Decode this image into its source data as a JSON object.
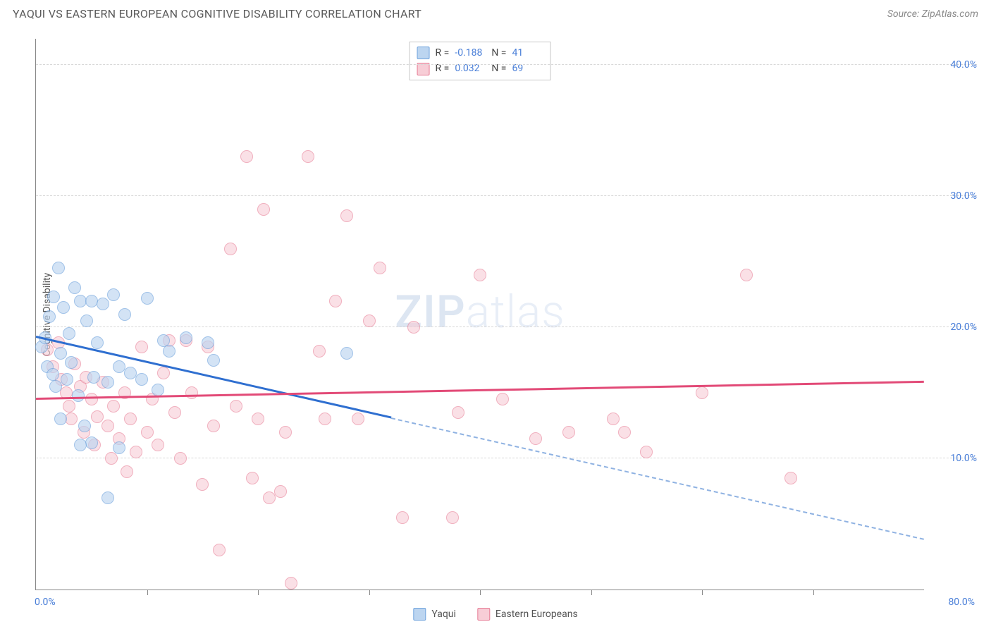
{
  "title": "YAQUI VS EASTERN EUROPEAN COGNITIVE DISABILITY CORRELATION CHART",
  "source": "Source: ZipAtlas.com",
  "ylabel": "Cognitive Disability",
  "watermark_bold": "ZIP",
  "watermark_light": "atlas",
  "chart": {
    "type": "scatter",
    "xlim": [
      0,
      80
    ],
    "ylim": [
      0,
      42
    ],
    "background_color": "#ffffff",
    "grid_color": "#d8d8d8",
    "marker_radius": 9,
    "marker_stroke_width": 1.2,
    "x_ticks": [
      10,
      20,
      30,
      40,
      50,
      60,
      70
    ],
    "y_gridlines": [
      10,
      20,
      30,
      40
    ],
    "y_tick_labels": [
      "10.0%",
      "20.0%",
      "30.0%",
      "40.0%"
    ],
    "x_min_label": "0.0%",
    "x_max_label": "80.0%",
    "tick_label_color": "#4a7fd8",
    "tick_label_fontsize": 14
  },
  "series": [
    {
      "name": "Yaqui",
      "fill": "#bcd5f0",
      "stroke": "#6fa3dd",
      "fill_opacity": 0.65,
      "trend": {
        "y_at_x0": 19.2,
        "y_at_x80": 3.8,
        "solid_until_x": 32,
        "color": "#2f6fd0",
        "width": 2.5,
        "dash_color": "#8fb2e2"
      },
      "R_label": "R = ",
      "R": "-0.188",
      "N_label": "N = ",
      "N": "41",
      "points": [
        [
          0.5,
          18.5
        ],
        [
          0.8,
          19.2
        ],
        [
          1.0,
          17.0
        ],
        [
          1.2,
          20.8
        ],
        [
          1.5,
          16.4
        ],
        [
          1.6,
          22.3
        ],
        [
          1.8,
          15.5
        ],
        [
          2.0,
          24.5
        ],
        [
          2.2,
          18.0
        ],
        [
          2.5,
          21.5
        ],
        [
          2.8,
          16.0
        ],
        [
          3.0,
          19.5
        ],
        [
          3.2,
          17.3
        ],
        [
          3.5,
          23.0
        ],
        [
          3.8,
          14.8
        ],
        [
          4.0,
          22.0
        ],
        [
          4.4,
          12.5
        ],
        [
          4.6,
          20.5
        ],
        [
          5.0,
          22.0
        ],
        [
          5.2,
          16.2
        ],
        [
          5.5,
          18.8
        ],
        [
          6.0,
          21.8
        ],
        [
          6.5,
          15.8
        ],
        [
          2.2,
          13.0
        ],
        [
          7.0,
          22.5
        ],
        [
          7.5,
          17.0
        ],
        [
          8.0,
          21.0
        ],
        [
          8.5,
          16.5
        ],
        [
          9.5,
          16.0
        ],
        [
          10.0,
          22.2
        ],
        [
          11.0,
          15.2
        ],
        [
          11.5,
          19.0
        ],
        [
          12.0,
          18.2
        ],
        [
          13.5,
          19.2
        ],
        [
          15.5,
          18.8
        ],
        [
          16.0,
          17.5
        ],
        [
          5.0,
          11.2
        ],
        [
          6.5,
          7.0
        ],
        [
          4.0,
          11.0
        ],
        [
          7.5,
          10.8
        ],
        [
          28.0,
          18.0
        ]
      ]
    },
    {
      "name": "Eastern Europeans",
      "fill": "#f7cdd6",
      "stroke": "#e77b94",
      "fill_opacity": 0.6,
      "trend": {
        "y_at_x0": 14.5,
        "y_at_x80": 15.8,
        "solid_until_x": 80,
        "color": "#e24a77",
        "width": 2.5
      },
      "R_label": "R = ",
      "R": "0.032",
      "N_label": "N = ",
      "N": "69",
      "points": [
        [
          1.0,
          18.3
        ],
        [
          1.5,
          17.0
        ],
        [
          2.0,
          18.8
        ],
        [
          2.3,
          16.0
        ],
        [
          2.7,
          15.0
        ],
        [
          3.0,
          14.0
        ],
        [
          3.2,
          13.0
        ],
        [
          3.5,
          17.2
        ],
        [
          4.0,
          15.5
        ],
        [
          4.3,
          12.0
        ],
        [
          4.5,
          16.2
        ],
        [
          5.0,
          14.5
        ],
        [
          5.3,
          11.0
        ],
        [
          5.5,
          13.2
        ],
        [
          6.0,
          15.8
        ],
        [
          6.5,
          12.5
        ],
        [
          6.8,
          10.0
        ],
        [
          7.0,
          14.0
        ],
        [
          7.5,
          11.5
        ],
        [
          8.0,
          15.0
        ],
        [
          8.2,
          9.0
        ],
        [
          8.5,
          13.0
        ],
        [
          9.0,
          10.5
        ],
        [
          9.5,
          18.5
        ],
        [
          10.0,
          12.0
        ],
        [
          10.5,
          14.5
        ],
        [
          11.0,
          11.0
        ],
        [
          11.5,
          16.5
        ],
        [
          12.0,
          19.0
        ],
        [
          12.5,
          13.5
        ],
        [
          13.0,
          10.0
        ],
        [
          13.5,
          19.0
        ],
        [
          14.0,
          15.0
        ],
        [
          15.0,
          8.0
        ],
        [
          15.5,
          18.5
        ],
        [
          16.0,
          12.5
        ],
        [
          16.5,
          3.0
        ],
        [
          17.5,
          26.0
        ],
        [
          18.0,
          14.0
        ],
        [
          19.0,
          33.0
        ],
        [
          19.5,
          8.5
        ],
        [
          20.0,
          13.0
        ],
        [
          20.5,
          29.0
        ],
        [
          21.0,
          7.0
        ],
        [
          22.0,
          7.5
        ],
        [
          23.0,
          0.5
        ],
        [
          24.5,
          33.0
        ],
        [
          25.5,
          18.2
        ],
        [
          26.0,
          13.0
        ],
        [
          27.0,
          22.0
        ],
        [
          28.0,
          28.5
        ],
        [
          29.0,
          13.0
        ],
        [
          30.0,
          20.5
        ],
        [
          31.0,
          24.5
        ],
        [
          33.0,
          5.5
        ],
        [
          34.0,
          20.0
        ],
        [
          37.5,
          5.5
        ],
        [
          40.0,
          24.0
        ],
        [
          42.0,
          14.5
        ],
        [
          48.0,
          12.0
        ],
        [
          52.0,
          13.0
        ],
        [
          53.0,
          12.0
        ],
        [
          55.0,
          10.5
        ],
        [
          60.0,
          15.0
        ],
        [
          64.0,
          24.0
        ],
        [
          68.0,
          8.5
        ],
        [
          45.0,
          11.5
        ],
        [
          38.0,
          13.5
        ],
        [
          22.5,
          12.0
        ]
      ]
    }
  ],
  "legend": {
    "items": [
      {
        "label": "Yaqui",
        "fill": "#bcd5f0",
        "stroke": "#6fa3dd"
      },
      {
        "label": "Eastern Europeans",
        "fill": "#f7cdd6",
        "stroke": "#e77b94"
      }
    ]
  }
}
